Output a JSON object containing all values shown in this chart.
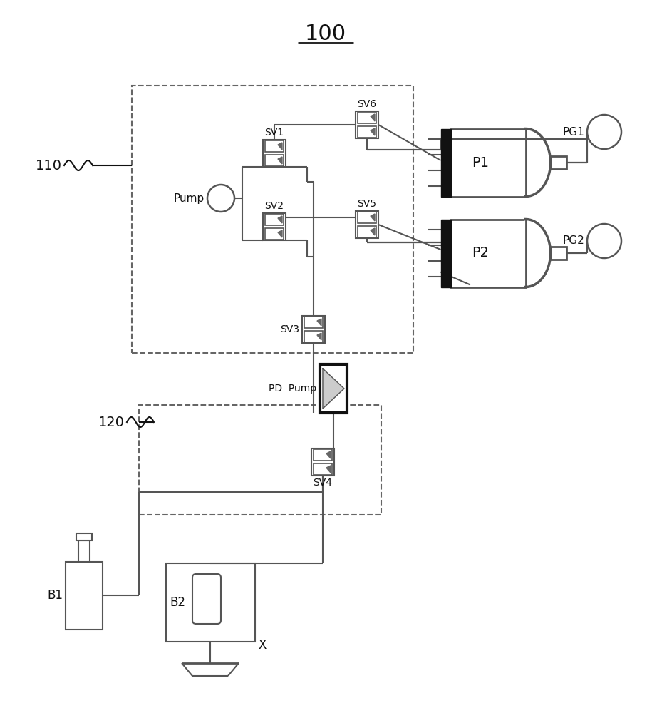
{
  "title": "100",
  "label_110": "110",
  "label_120": "120",
  "label_pump": "Pump",
  "label_pd_pump": "PD  Pump",
  "label_sv1": "SV1",
  "label_sv2": "SV2",
  "label_sv3": "SV3",
  "label_sv4": "SV4",
  "label_sv5": "SV5",
  "label_sv6": "SV6",
  "label_p1": "P1",
  "label_p2": "P2",
  "label_pg1": "PG1",
  "label_pg2": "PG2",
  "label_b1": "B1",
  "label_b2": "B2",
  "label_x": "X",
  "bg_color": "#ffffff",
  "line_color": "#555555",
  "thick_color": "#111111",
  "dashed_color": "#666666",
  "fig_width": 9.15,
  "fig_height": 10.0,
  "dpi": 100
}
